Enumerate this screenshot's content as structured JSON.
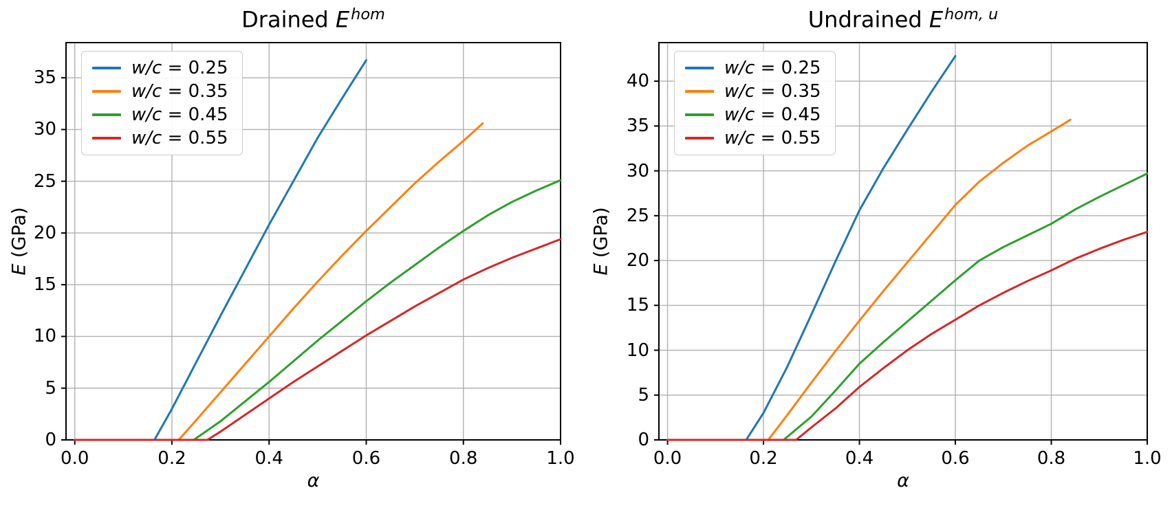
{
  "figure": {
    "background": "#ffffff",
    "grid_color": "#b0b0b0",
    "spine_color": "#000000",
    "text_color": "#000000"
  },
  "chart_data": [
    {
      "type": "line",
      "title_prefix": "Drained ",
      "title_symbol": "E",
      "title_superscript": "hom",
      "xlabel": "α",
      "ylabel_symbol": "E",
      "ylabel_rest": " (GPa)",
      "xlim": [
        -0.018,
        1.0
      ],
      "ylim": [
        0,
        38.4
      ],
      "xticks": [
        "0.0",
        "0.2",
        "0.4",
        "0.6",
        "0.8",
        "1.0"
      ],
      "yticks": [
        "0",
        "5",
        "10",
        "15",
        "20",
        "25",
        "30",
        "35"
      ],
      "grid": true,
      "legend_position": "upper left",
      "series": [
        {
          "name": "w/c = 0.25",
          "label_var": "w/c",
          "label_rest": " = 0.25",
          "color": "#1f77b4",
          "percolation_threshold": 0.164,
          "x": [
            0,
            0.164,
            0.2,
            0.25,
            0.3,
            0.35,
            0.4,
            0.45,
            0.5,
            0.55,
            0.6
          ],
          "y": [
            0,
            0,
            3.0,
            7.5,
            12.0,
            16.4,
            20.8,
            25.0,
            29.2,
            33.0,
            36.7
          ]
        },
        {
          "name": "w/c = 0.35",
          "label_var": "w/c",
          "label_rest": " = 0.35",
          "color": "#ff7f0e",
          "percolation_threshold": 0.214,
          "x": [
            0,
            0.214,
            0.25,
            0.3,
            0.35,
            0.4,
            0.45,
            0.5,
            0.55,
            0.6,
            0.65,
            0.7,
            0.75,
            0.8,
            0.84
          ],
          "y": [
            0,
            0,
            1.9,
            4.6,
            7.3,
            10.0,
            12.7,
            15.3,
            17.8,
            20.2,
            22.5,
            24.8,
            26.9,
            28.9,
            30.6
          ]
        },
        {
          "name": "w/c = 0.45",
          "label_var": "w/c",
          "label_rest": " = 0.45",
          "color": "#2ca02c",
          "percolation_threshold": 0.245,
          "x": [
            0,
            0.245,
            0.3,
            0.35,
            0.4,
            0.45,
            0.5,
            0.55,
            0.6,
            0.65,
            0.7,
            0.75,
            0.8,
            0.85,
            0.9,
            0.95,
            1.0
          ],
          "y": [
            0,
            0,
            1.8,
            3.7,
            5.6,
            7.6,
            9.6,
            11.5,
            13.4,
            15.2,
            16.9,
            18.6,
            20.2,
            21.7,
            23.0,
            24.1,
            25.1
          ]
        },
        {
          "name": "w/c = 0.55",
          "label_var": "w/c",
          "label_rest": " = 0.55",
          "color": "#d62728",
          "percolation_threshold": 0.273,
          "x": [
            0,
            0.273,
            0.3,
            0.35,
            0.4,
            0.45,
            0.5,
            0.55,
            0.6,
            0.65,
            0.7,
            0.75,
            0.8,
            0.85,
            0.9,
            0.95,
            1.0
          ],
          "y": [
            0,
            0,
            0.8,
            2.4,
            4.0,
            5.6,
            7.1,
            8.6,
            10.1,
            11.5,
            12.9,
            14.2,
            15.5,
            16.6,
            17.6,
            18.5,
            19.4
          ]
        }
      ]
    },
    {
      "type": "line",
      "title_prefix": "Undrained ",
      "title_symbol": "E",
      "title_superscript": "hom, u",
      "xlabel": "α",
      "ylabel_symbol": "E",
      "ylabel_rest": " (GPa)",
      "xlim": [
        -0.018,
        1.0
      ],
      "ylim": [
        0,
        44.3
      ],
      "xticks": [
        "0.0",
        "0.2",
        "0.4",
        "0.6",
        "0.8",
        "1.0"
      ],
      "yticks": [
        "0",
        "5",
        "10",
        "15",
        "20",
        "25",
        "30",
        "35",
        "40"
      ],
      "grid": true,
      "legend_position": "upper left",
      "series": [
        {
          "name": "w/c = 0.25",
          "label_var": "w/c",
          "label_rest": " = 0.25",
          "color": "#1f77b4",
          "percolation_threshold": 0.164,
          "x": [
            0,
            0.164,
            0.2,
            0.25,
            0.3,
            0.35,
            0.4,
            0.45,
            0.5,
            0.55,
            0.6
          ],
          "y": [
            0,
            0,
            3.0,
            8.2,
            14.0,
            19.9,
            25.6,
            30.3,
            34.6,
            38.8,
            42.8
          ]
        },
        {
          "name": "w/c = 0.35",
          "label_var": "w/c",
          "label_rest": " = 0.35",
          "color": "#ff7f0e",
          "percolation_threshold": 0.21,
          "x": [
            0,
            0.21,
            0.25,
            0.3,
            0.35,
            0.4,
            0.45,
            0.5,
            0.55,
            0.6,
            0.65,
            0.7,
            0.75,
            0.8,
            0.84
          ],
          "y": [
            0,
            0,
            2.8,
            6.4,
            9.9,
            13.3,
            16.6,
            19.8,
            23.0,
            26.2,
            28.8,
            30.9,
            32.8,
            34.4,
            35.7
          ]
        },
        {
          "name": "w/c = 0.45",
          "label_var": "w/c",
          "label_rest": " = 0.45",
          "color": "#2ca02c",
          "percolation_threshold": 0.242,
          "x": [
            0,
            0.242,
            0.3,
            0.35,
            0.4,
            0.45,
            0.5,
            0.55,
            0.6,
            0.65,
            0.7,
            0.75,
            0.8,
            0.85,
            0.9,
            0.95,
            1.0
          ],
          "y": [
            0,
            0,
            2.6,
            5.5,
            8.5,
            10.9,
            13.2,
            15.5,
            17.8,
            20.0,
            21.5,
            22.8,
            24.1,
            25.7,
            27.1,
            28.4,
            29.7
          ]
        },
        {
          "name": "w/c = 0.55",
          "label_var": "w/c",
          "label_rest": " = 0.55",
          "color": "#d62728",
          "percolation_threshold": 0.268,
          "x": [
            0,
            0.268,
            0.3,
            0.35,
            0.4,
            0.45,
            0.5,
            0.55,
            0.6,
            0.65,
            0.7,
            0.75,
            0.8,
            0.85,
            0.9,
            0.95,
            1.0
          ],
          "y": [
            0,
            0,
            1.4,
            3.5,
            5.9,
            8.0,
            10.0,
            11.8,
            13.4,
            15.0,
            16.4,
            17.7,
            18.9,
            20.2,
            21.3,
            22.3,
            23.2
          ]
        }
      ]
    }
  ]
}
